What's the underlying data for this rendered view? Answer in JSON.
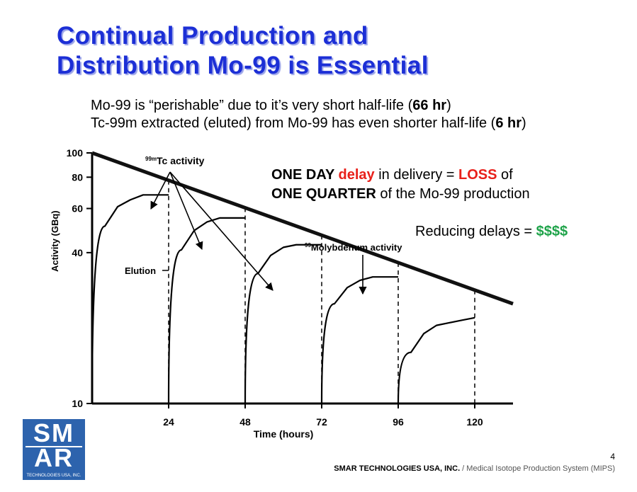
{
  "slide": {
    "title_line1": "Continual Production and",
    "title_line2": "Distribution Mo-99 is Essential",
    "fact1": {
      "pre": "Mo-99 is “perishable” due to it’s very short half-life (",
      "bold": "66 hr",
      "post": ")"
    },
    "fact2": {
      "pre": "Tc-99m extracted (eluted) from Mo-99 has even shorter half-life (",
      "bold": "6 hr",
      "post": ")"
    },
    "callout": {
      "a": "ONE DAY ",
      "b": "delay",
      "c": " in delivery = ",
      "d": "LOSS",
      "e": " of",
      "f": "ONE QUARTER",
      "g": " of the Mo-99 production"
    },
    "reduce": {
      "pre": "Reducing delays = ",
      "money": "$$$$"
    },
    "page_number": "4",
    "footer": {
      "company": "SMAR TECHNOLOGIES USA, INC.",
      "sep": " / ",
      "system": "Medical Isotope Production System (MIPS)"
    },
    "logo": {
      "line1": "SM",
      "line2": "AR",
      "sub": "TECHNOLOGIES USA, INC."
    },
    "colors": {
      "title": "#1c2fd6",
      "red": "#e8201a",
      "green": "#1fa34a",
      "logo_bg": "#2d63ad"
    }
  },
  "chart_data": {
    "type": "line",
    "xlabel": "Time (hours)",
    "ylabel": "Activity (GBq)",
    "x_ticks": [
      24,
      48,
      72,
      96,
      120
    ],
    "y_ticks": [
      10,
      40,
      60,
      80,
      100
    ],
    "y_scale": "log",
    "xlim": [
      0,
      132
    ],
    "ylim": [
      10,
      100
    ],
    "annotations": {
      "tc": {
        "sup": "99m",
        "text": "Tc activity"
      },
      "mo": {
        "sup": "99",
        "text": "Molybdenum activity"
      },
      "elution": "Elution"
    },
    "series": [
      {
        "name": "99Molybdenum activity",
        "x": [
          0,
          132
        ],
        "y": [
          100,
          25.0
        ]
      },
      {
        "name": "99mTc activity",
        "segments": [
          {
            "x": [
              0,
              4,
              8,
              12,
              16,
              20,
              24
            ],
            "y": [
              10,
              51,
              61,
              65,
              68,
              68,
              68
            ]
          },
          {
            "x": [
              24,
              28,
              32,
              36,
              40,
              44,
              48
            ],
            "y": [
              10,
              41,
              49,
              53,
              55,
              55,
              55
            ]
          },
          {
            "x": [
              48,
              52,
              56,
              60,
              64,
              68,
              72
            ],
            "y": [
              10,
              33,
              39,
              42,
              43,
              43,
              43
            ]
          },
          {
            "x": [
              72,
              76,
              80,
              84,
              88,
              92,
              96
            ],
            "y": [
              10,
              25,
              29,
              31,
              32,
              32,
              32
            ]
          },
          {
            "x": [
              96,
              100,
              104,
              108,
              112,
              116,
              120
            ],
            "y": [
              10,
              16,
              19,
              20.5,
              21,
              21.5,
              22
            ]
          }
        ]
      }
    ],
    "elution_times": [
      24,
      48,
      72,
      96,
      120
    ]
  }
}
